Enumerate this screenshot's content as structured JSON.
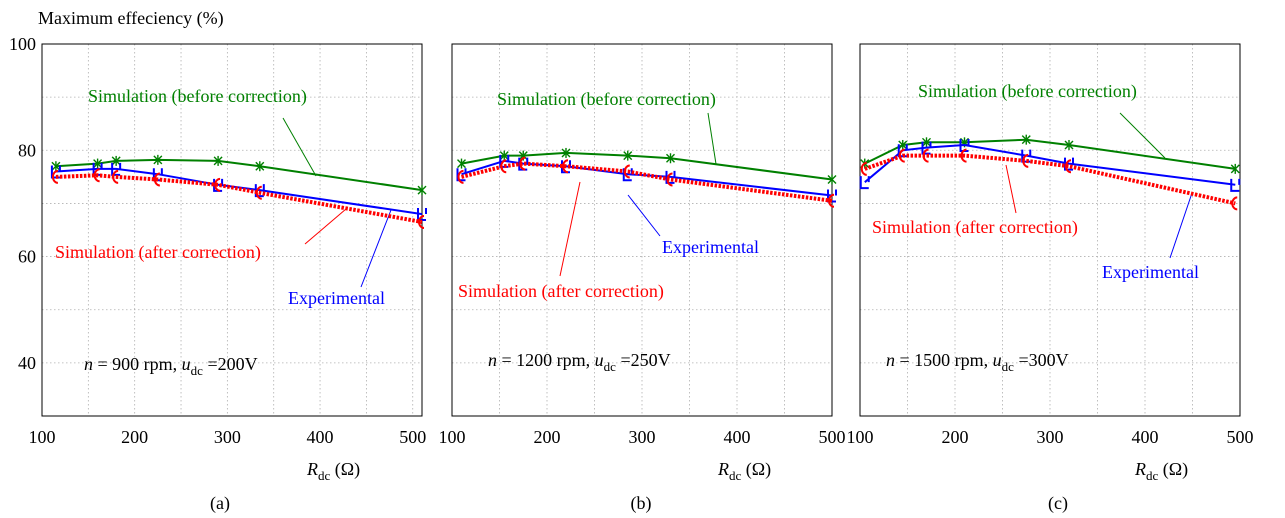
{
  "ylabel": "Maximum effeciency  (%)",
  "xlabel": {
    "main": "R",
    "sub": "dc",
    "unit": " (Ω)"
  },
  "colors": {
    "simulation_before": "#008000",
    "simulation_after": "#ff0000",
    "experimental": "#0000ff",
    "grid": "#b0b0b0",
    "axis": "#000000"
  },
  "chart_data": [
    {
      "type": "line",
      "panel_label": "(a)",
      "condition": {
        "n": "n",
        "rest": " = 900 rpm, ",
        "u": "u",
        "sub": "dc",
        "value": " =200V"
      },
      "xlim": [
        100,
        510
      ],
      "ylim": [
        30,
        100
      ],
      "xticks": [
        100,
        200,
        300,
        400,
        500
      ],
      "yticks": [
        40,
        60,
        80,
        100
      ],
      "grid": true,
      "series": [
        {
          "name": "Simulation (before correction)",
          "key": "before",
          "style": "solid",
          "marker": "star",
          "x": [
            115,
            160,
            180,
            225,
            290,
            335,
            510
          ],
          "y": [
            77,
            77.5,
            78,
            78.2,
            78,
            77,
            72.5
          ]
        },
        {
          "name": "Experimental",
          "key": "exp",
          "style": "solid",
          "marker": "bracket",
          "x": [
            115,
            160,
            180,
            225,
            290,
            335,
            510
          ],
          "y": [
            76,
            76.5,
            76.5,
            75.5,
            73.5,
            72.5,
            68
          ]
        },
        {
          "name": "Simulation (after correction)",
          "key": "after",
          "style": "dotted",
          "marker": "paren",
          "x": [
            115,
            160,
            180,
            225,
            290,
            335,
            510
          ],
          "y": [
            75,
            75.3,
            75,
            74.5,
            73.5,
            72,
            66.5
          ]
        }
      ]
    },
    {
      "type": "line",
      "panel_label": "(b)",
      "condition": {
        "n": "n",
        "rest": " = 1200 rpm, ",
        "u": "u",
        "sub": "dc",
        "value": " =250V"
      },
      "xlim": [
        100,
        500
      ],
      "ylim": [
        30,
        100
      ],
      "xticks": [
        100,
        200,
        300,
        400,
        500
      ],
      "yticks": [
        40,
        60,
        80,
        100
      ],
      "grid": true,
      "series": [
        {
          "name": "Simulation (before correction)",
          "key": "before",
          "style": "solid",
          "marker": "star",
          "x": [
            110,
            155,
            175,
            220,
            285,
            330,
            500
          ],
          "y": [
            77.5,
            79,
            79,
            79.5,
            79,
            78.5,
            74.5
          ]
        },
        {
          "name": "Experimental",
          "key": "exp",
          "style": "solid",
          "marker": "bracket",
          "x": [
            110,
            155,
            175,
            220,
            285,
            330,
            500
          ],
          "y": [
            75.5,
            78,
            77.5,
            77,
            75.5,
            75,
            71.5
          ]
        },
        {
          "name": "Simulation (after correction)",
          "key": "after",
          "style": "dotted",
          "marker": "paren",
          "x": [
            110,
            155,
            175,
            220,
            285,
            330,
            500
          ],
          "y": [
            75,
            77,
            77.5,
            77,
            76,
            74.5,
            70.5
          ]
        }
      ]
    },
    {
      "type": "line",
      "panel_label": "(c)",
      "condition": {
        "n": "n",
        "rest": " = 1500 rpm, ",
        "u": "u",
        "sub": "dc",
        "value": " =300V"
      },
      "xlim": [
        100,
        500
      ],
      "ylim": [
        30,
        100
      ],
      "xticks": [
        100,
        200,
        300,
        400,
        500
      ],
      "yticks": [
        40,
        60,
        80,
        100
      ],
      "grid": true,
      "series": [
        {
          "name": "Simulation (before correction)",
          "key": "before",
          "style": "solid",
          "marker": "star",
          "x": [
            105,
            145,
            170,
            210,
            275,
            320,
            495
          ],
          "y": [
            77.5,
            81,
            81.5,
            81.5,
            82,
            81,
            76.5
          ]
        },
        {
          "name": "Experimental",
          "key": "exp",
          "style": "solid",
          "marker": "bracket",
          "x": [
            105,
            145,
            170,
            210,
            275,
            320,
            495
          ],
          "y": [
            74,
            80,
            80.5,
            81,
            79,
            77.5,
            73.5
          ]
        },
        {
          "name": "Simulation (after correction)",
          "key": "after",
          "style": "dotted",
          "marker": "paren",
          "x": [
            105,
            145,
            170,
            210,
            275,
            320,
            495
          ],
          "y": [
            76.5,
            79,
            79,
            79,
            78,
            77,
            70
          ]
        }
      ]
    }
  ]
}
